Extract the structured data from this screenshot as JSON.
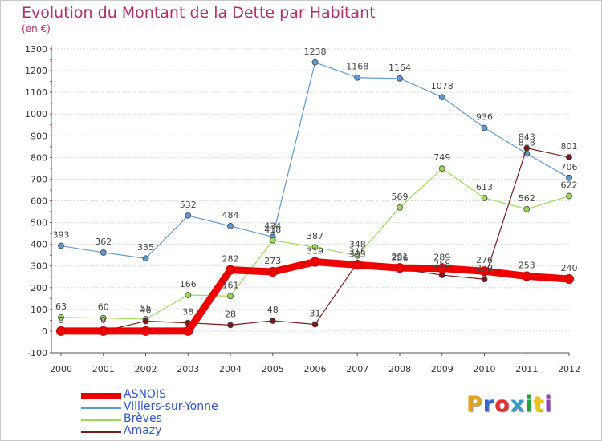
{
  "header": {
    "title": "Evolution du Montant de la Dette par Habitant",
    "subtitle": "(en €)"
  },
  "brand": {
    "logo_text": "Proxiti",
    "logo_colors": [
      "#e8a020",
      "#3366cc",
      "#e03030",
      "#3399cc",
      "#2aa040",
      "#f0c020",
      "#9040c0"
    ]
  },
  "chart_data": {
    "type": "line",
    "title": "Evolution du Montant de la Dette par Habitant",
    "subtitle": "(en €)",
    "x": [
      2000,
      2001,
      2002,
      2003,
      2004,
      2005,
      2006,
      2007,
      2008,
      2009,
      2010,
      2011,
      2012
    ],
    "x_tick_labels": [
      "2000",
      "2001",
      "2002",
      "2003",
      "2004",
      "2005",
      "2006",
      "2007",
      "2008",
      "2009",
      "2010",
      "2011",
      "2012"
    ],
    "ylim": [
      -100,
      1300
    ],
    "y_ticks": [
      -100,
      0,
      100,
      200,
      300,
      400,
      500,
      600,
      700,
      800,
      900,
      1000,
      1100,
      1200,
      1300
    ],
    "y_tick_labels": [
      "-100",
      "0",
      "100",
      "200",
      "300",
      "400",
      "500",
      "600",
      "700",
      "800",
      "900",
      "1000",
      "1100",
      "1200",
      "1300"
    ],
    "grid": "horizontal",
    "legend_position": "bottom-left",
    "series": [
      {
        "name": "ASNOIS",
        "color": "#ee0000",
        "style": "thick",
        "values": [
          0,
          0,
          0,
          0,
          282,
          273,
          319,
          305,
          291,
          289,
          276,
          253,
          240
        ],
        "labels": [
          "",
          "",
          "",
          "",
          "282",
          "273",
          "319",
          "305",
          "291",
          "289",
          "276",
          "253",
          "240"
        ]
      },
      {
        "name": "Villiers-sur-Yonne",
        "color": "#5b9bd5",
        "style": "thin",
        "values": [
          393,
          362,
          335,
          532,
          484,
          434,
          1238,
          1168,
          1164,
          1078,
          936,
          818,
          706
        ],
        "labels": [
          "393",
          "362",
          "335",
          "532",
          "484",
          "434",
          "1238",
          "1168",
          "1164",
          "1078",
          "936",
          "818",
          "706"
        ]
      },
      {
        "name": "Brèves",
        "color": "#99dd55",
        "style": "thin",
        "values": [
          63,
          60,
          55,
          166,
          161,
          418,
          387,
          348,
          569,
          749,
          613,
          562,
          622
        ],
        "labels": [
          "63",
          "60",
          "55",
          "166",
          "161",
          "418",
          "387",
          "348",
          "569",
          "749",
          "613",
          "562",
          "622"
        ]
      },
      {
        "name": "Amazy",
        "color": "#7a1a1a",
        "style": "thin",
        "values": [
          0,
          0,
          46,
          38,
          28,
          48,
          31,
          315,
          286,
          258,
          239,
          843,
          801
        ],
        "labels": [
          "0",
          "0",
          "46",
          "38",
          "28",
          "48",
          "31",
          "315",
          "286",
          "258",
          "239",
          "843",
          "801"
        ]
      }
    ]
  }
}
